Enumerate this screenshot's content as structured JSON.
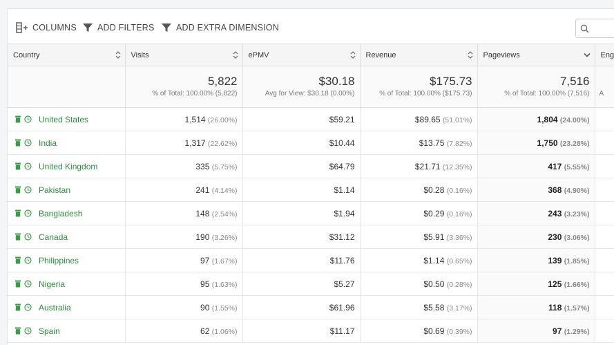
{
  "toolbar": {
    "columns_label": "COLUMNS",
    "filters_label": "ADD FILTERS",
    "dimension_label": "ADD EXTRA DIMENSION",
    "search_placeholder": ""
  },
  "colors": {
    "link_green": "#2e8b3e",
    "icon_green": "#3a9a48"
  },
  "columns": [
    "Country",
    "Visits",
    "ePMV",
    "Revenue",
    "Pageviews",
    "Eng"
  ],
  "totals": {
    "visits": {
      "value": "5,822",
      "sub": "% of Total: 100.00% (5,822)"
    },
    "epmv": {
      "value": "$30.18",
      "sub": "Avg for View: $30.18 (0.00%)"
    },
    "revenue": {
      "value": "$175.73",
      "sub": "% of Total: 100.00% ($175.73)"
    },
    "pageviews": {
      "value": "7,516",
      "sub": "% of Total: 100.00% (7,516)"
    },
    "eng_sub": "A"
  },
  "rows": [
    {
      "country": "United States",
      "visits": "1,514",
      "visits_pct": "(26.00%)",
      "epmv": "$59.21",
      "revenue": "$89.65",
      "revenue_pct": "(51.01%)",
      "pageviews": "1,804",
      "pageviews_pct": "(24.00%)"
    },
    {
      "country": "India",
      "visits": "1,317",
      "visits_pct": "(22.62%)",
      "epmv": "$10.44",
      "revenue": "$13.75",
      "revenue_pct": "(7.82%)",
      "pageviews": "1,750",
      "pageviews_pct": "(23.28%)"
    },
    {
      "country": "United Kingdom",
      "visits": "335",
      "visits_pct": "(5.75%)",
      "epmv": "$64.79",
      "revenue": "$21.71",
      "revenue_pct": "(12.35%)",
      "pageviews": "417",
      "pageviews_pct": "(5.55%)"
    },
    {
      "country": "Pakistan",
      "visits": "241",
      "visits_pct": "(4.14%)",
      "epmv": "$1.14",
      "revenue": "$0.28",
      "revenue_pct": "(0.16%)",
      "pageviews": "368",
      "pageviews_pct": "(4.90%)"
    },
    {
      "country": "Bangladesh",
      "visits": "148",
      "visits_pct": "(2.54%)",
      "epmv": "$1.94",
      "revenue": "$0.29",
      "revenue_pct": "(0.16%)",
      "pageviews": "243",
      "pageviews_pct": "(3.23%)"
    },
    {
      "country": "Canada",
      "visits": "190",
      "visits_pct": "(3.26%)",
      "epmv": "$31.12",
      "revenue": "$5.91",
      "revenue_pct": "(3.36%)",
      "pageviews": "230",
      "pageviews_pct": "(3.06%)"
    },
    {
      "country": "Philippines",
      "visits": "97",
      "visits_pct": "(1.67%)",
      "epmv": "$11.76",
      "revenue": "$1.14",
      "revenue_pct": "(0.65%)",
      "pageviews": "139",
      "pageviews_pct": "(1.85%)"
    },
    {
      "country": "Nigeria",
      "visits": "95",
      "visits_pct": "(1.63%)",
      "epmv": "$5.27",
      "revenue": "$0.50",
      "revenue_pct": "(0.28%)",
      "pageviews": "125",
      "pageviews_pct": "(1.66%)"
    },
    {
      "country": "Australia",
      "visits": "90",
      "visits_pct": "(1.55%)",
      "epmv": "$61.96",
      "revenue": "$5.58",
      "revenue_pct": "(3.17%)",
      "pageviews": "118",
      "pageviews_pct": "(1.57%)"
    },
    {
      "country": "Spain",
      "visits": "62",
      "visits_pct": "(1.06%)",
      "epmv": "$11.17",
      "revenue": "$0.69",
      "revenue_pct": "(0.39%)",
      "pageviews": "97",
      "pageviews_pct": "(1.29%)"
    }
  ]
}
